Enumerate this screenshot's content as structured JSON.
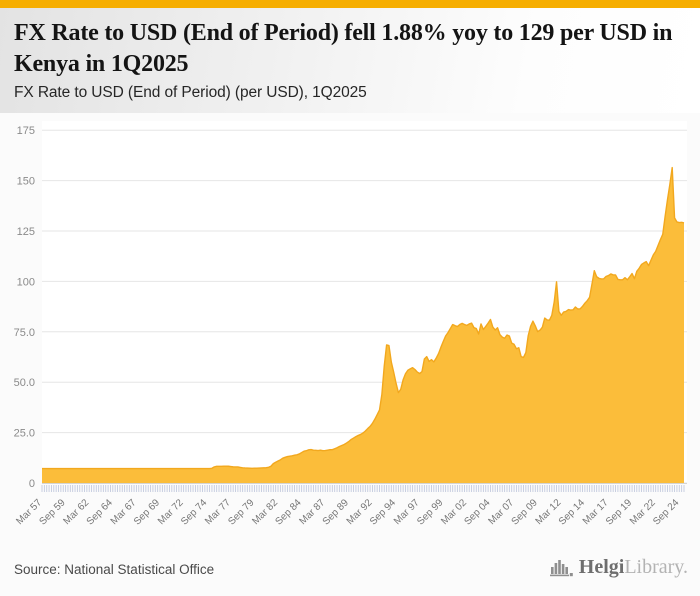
{
  "accent": {
    "top_bar_color": "#f6ae01"
  },
  "header": {
    "title": "FX Rate to USD (End of Period) fell 1.88% yoy to 129 per USD in Kenya in 1Q2025",
    "subtitle": "FX Rate to USD (End of Period) (per USD), 1Q2025"
  },
  "footer": {
    "source": "Source: National Statistical Office",
    "logo": {
      "icon": "bar-chart-logo",
      "brand_primary": "Helgi",
      "brand_secondary": "Library."
    }
  },
  "chart_data": {
    "type": "area",
    "title": "FX Rate to USD (End of Period) (per USD), 1Q2025",
    "xlabel": "",
    "ylabel": "",
    "x_start": "1957Q1",
    "x_end": "2025Q1",
    "frequency": "quarterly",
    "ylim": [
      0,
      183
    ],
    "y_tick_values": [
      0,
      25,
      50,
      75,
      100,
      125,
      150,
      175
    ],
    "y_tick_labels": [
      "0",
      "25.0",
      "50.0",
      "75.0",
      "100",
      "125",
      "150",
      "175"
    ],
    "x_tick_every": 10,
    "x_tick_labels": [
      "Mar 57",
      "Sep 59",
      "Mar 62",
      "Sep 64",
      "Mar 67",
      "Sep 69",
      "Mar 72",
      "Sep 74",
      "Mar 77",
      "Sep 79",
      "Mar 82",
      "Sep 84",
      "Mar 87",
      "Sep 89",
      "Mar 92",
      "Sep 94",
      "Mar 97",
      "Sep 99",
      "Mar 02",
      "Sep 04",
      "Mar 07",
      "Sep 09",
      "Mar 12",
      "Sep 14",
      "Mar 17",
      "Sep 19",
      "Mar 22",
      "Sep 24"
    ],
    "grid": true,
    "legend": false,
    "fill_color": "#fbbd3a",
    "line_color": "#f2a81e",
    "gridline_color": "#e6e6e6",
    "axis_line_color": "#d4d4d4",
    "tick_color": "#c3cade",
    "y_label_color": "#8a8a8a",
    "x_label_color": "#767676",
    "plot_bg": "#ffffff",
    "values": [
      7.14,
      7.14,
      7.14,
      7.14,
      7.14,
      7.14,
      7.14,
      7.14,
      7.14,
      7.14,
      7.14,
      7.14,
      7.14,
      7.14,
      7.14,
      7.14,
      7.14,
      7.14,
      7.14,
      7.14,
      7.14,
      7.14,
      7.14,
      7.14,
      7.14,
      7.14,
      7.14,
      7.14,
      7.14,
      7.14,
      7.14,
      7.14,
      7.14,
      7.14,
      7.14,
      7.14,
      7.14,
      7.14,
      7.14,
      7.14,
      7.14,
      7.14,
      7.14,
      7.14,
      7.14,
      7.14,
      7.14,
      7.14,
      7.14,
      7.14,
      7.14,
      7.14,
      7.14,
      7.14,
      7.14,
      7.14,
      7.14,
      7.14,
      7.14,
      7.14,
      7.14,
      7.14,
      7.14,
      7.14,
      7.14,
      7.14,
      7.14,
      7.14,
      7.14,
      7.14,
      7.14,
      7.14,
      7.3,
      8.0,
      8.3,
      8.26,
      8.3,
      8.35,
      8.32,
      8.31,
      8.15,
      8.0,
      7.95,
      7.95,
      7.75,
      7.55,
      7.45,
      7.4,
      7.35,
      7.3,
      7.33,
      7.33,
      7.4,
      7.45,
      7.52,
      7.57,
      7.8,
      8.3,
      9.6,
      10.29,
      10.9,
      11.5,
      12.3,
      12.73,
      13.1,
      13.3,
      13.5,
      13.8,
      14.0,
      14.4,
      15.1,
      15.78,
      16.0,
      16.45,
      16.6,
      16.28,
      16.2,
      16.1,
      16.3,
      16.04,
      16.1,
      16.3,
      16.5,
      16.52,
      17.0,
      17.5,
      18.1,
      18.6,
      19.1,
      19.8,
      20.6,
      21.6,
      22.3,
      23.0,
      23.6,
      24.08,
      24.8,
      25.8,
      27.0,
      28.07,
      29.6,
      31.6,
      33.9,
      36.22,
      44.0,
      58.0,
      68.5,
      68.16,
      60.0,
      55.0,
      49.5,
      44.84,
      46.5,
      51.2,
      54.2,
      55.94,
      56.6,
      57.2,
      56.3,
      55.02,
      54.3,
      55.3,
      61.5,
      62.68,
      60.3,
      61.2,
      60.1,
      61.91,
      64.2,
      67.3,
      70.2,
      72.93,
      74.6,
      76.6,
      78.6,
      78.04,
      77.6,
      78.6,
      79.2,
      78.6,
      78.2,
      78.9,
      79.3,
      77.07,
      76.6,
      73.9,
      78.9,
      76.14,
      77.7,
      79.3,
      81.1,
      77.34,
      75.9,
      77.0,
      73.6,
      72.37,
      71.8,
      73.4,
      72.9,
      69.4,
      68.8,
      66.6,
      67.1,
      62.68,
      62.3,
      64.7,
      73.1,
      77.71,
      80.3,
      77.9,
      75.1,
      75.82,
      77.3,
      81.8,
      80.9,
      80.75,
      83.2,
      89.7,
      99.8,
      85.07,
      83.2,
      84.8,
      85.1,
      86.0,
      85.8,
      85.9,
      87.3,
      86.31,
      86.4,
      87.6,
      89.2,
      90.44,
      92.1,
      98.6,
      105.3,
      102.31,
      101.5,
      101.2,
      101.3,
      102.49,
      102.9,
      103.7,
      103.2,
      103.23,
      101.0,
      100.8,
      100.8,
      101.85,
      100.8,
      102.3,
      103.9,
      101.34,
      105.0,
      106.5,
      108.4,
      109.17,
      109.8,
      107.8,
      110.5,
      113.14,
      114.9,
      117.8,
      120.7,
      123.37,
      132.3,
      140.5,
      148.1,
      156.46,
      131.5,
      129.5,
      129.2,
      129.29,
      129.0
    ]
  }
}
